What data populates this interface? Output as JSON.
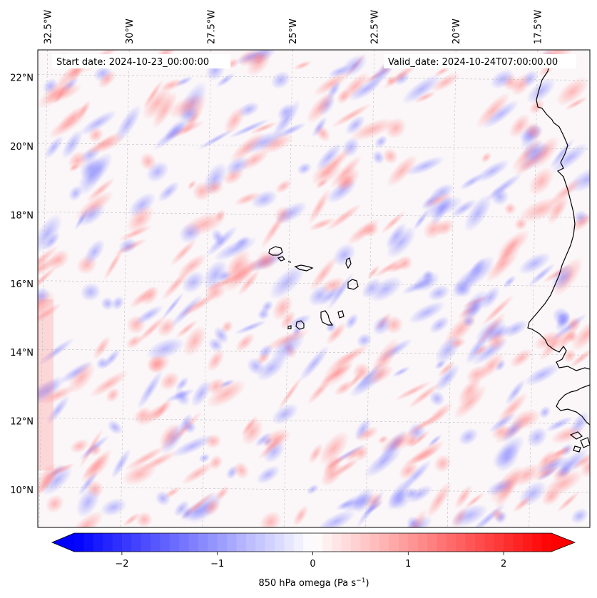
{
  "map": {
    "start_date_text": "Start date: 2024-10-23_00:00:00",
    "valid_date_text": "Valid_date: 2024-10-24T07:00:00.00",
    "lon_labels": [
      "32.5°W",
      "30°W",
      "27.5°W",
      "25°W",
      "22.5°W",
      "20°W",
      "17.5°W"
    ],
    "lat_labels": [
      "22°N",
      "20°N",
      "18°N",
      "16°N",
      "14°N",
      "12°N",
      "10°N"
    ],
    "lon_values": [
      -32.5,
      -30,
      -27.5,
      -25,
      -22.5,
      -20,
      -17.5
    ],
    "lat_values": [
      22,
      20,
      18,
      16,
      14,
      12,
      10
    ],
    "lon_range": [
      -32.8,
      -15.9
    ],
    "lat_range": [
      8.9,
      22.8
    ],
    "field": "850 hPa omega",
    "gridlines": true,
    "coastline_color": "#000000"
  },
  "colorbar": {
    "label_main": "850 hPa omega (Pa s",
    "label_exp": "−1",
    "label_close": ")",
    "tick_labels": [
      "−2",
      "−1",
      "0",
      "1",
      "2"
    ],
    "tick_values": [
      -2,
      -1,
      0,
      1,
      2
    ],
    "range": [
      -2.5,
      2.5
    ],
    "extend": "both",
    "colormap": "bwr",
    "low_color": "#0000ff",
    "mid_color": "#ffffff",
    "high_color": "#ff0000"
  }
}
